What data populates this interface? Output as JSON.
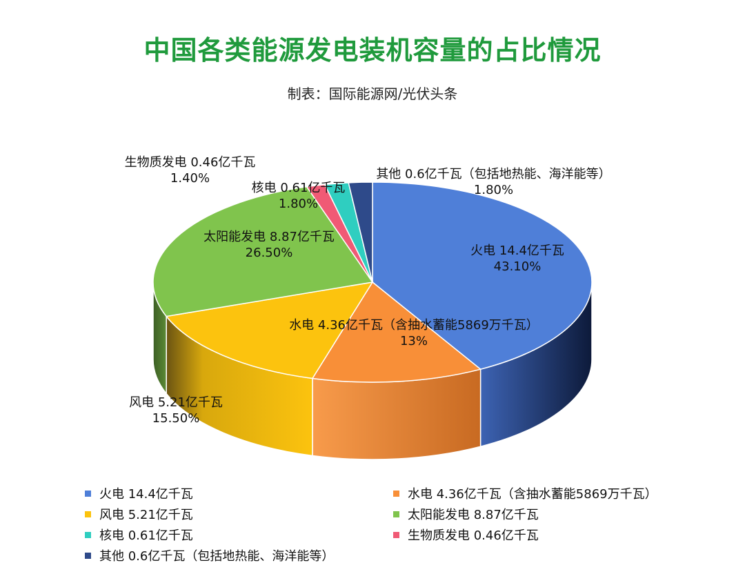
{
  "title": "中国各类能源发电装机容量的占比情况",
  "subtitle": "制表：国际能源网/光伏头条",
  "chart_data": {
    "type": "pie",
    "series": [
      {
        "name": "火电 14.4亿千瓦",
        "percent_label": "43.10%",
        "value": 43.1,
        "color": "#4f7fd8"
      },
      {
        "name": "水电 4.36亿千瓦（含抽水蓄能5869万千瓦）",
        "percent_label": "13%",
        "value": 13.0,
        "color": "#f88f38"
      },
      {
        "name": "风电 5.21亿千瓦",
        "percent_label": "15.50%",
        "value": 15.5,
        "color": "#fcc30e"
      },
      {
        "name": "太阳能发电 8.87亿千瓦",
        "percent_label": "26.50%",
        "value": 26.5,
        "color": "#80c44d"
      },
      {
        "name": "生物质发电 0.46亿千瓦",
        "percent_label": "1.40%",
        "value": 1.4,
        "color": "#f05a75"
      },
      {
        "name": "核电 0.61亿千瓦",
        "percent_label": "1.80%",
        "value": 1.8,
        "color": "#2fcec0"
      },
      {
        "name": "其他 0.6亿千瓦（包括地热能、海洋能等）",
        "percent_label": "1.80%",
        "value": 1.8,
        "color": "#2e4a8a"
      }
    ],
    "legend": [
      "火电 14.4亿千瓦",
      "水电 4.36亿千瓦（含抽水蓄能5869万千瓦）",
      "风电 5.21亿千瓦",
      "太阳能发电 8.87亿千瓦",
      "核电 0.61亿千瓦",
      "生物质发电 0.46亿千瓦",
      "其他 0.6亿千瓦（包括地热能、海洋能等）"
    ],
    "legend_colors": [
      "#4f7fd8",
      "#f88f38",
      "#fcc30e",
      "#80c44d",
      "#2fcec0",
      "#f05a75",
      "#2e4a8a"
    ],
    "legend_position": "bottom",
    "style": "3d"
  }
}
